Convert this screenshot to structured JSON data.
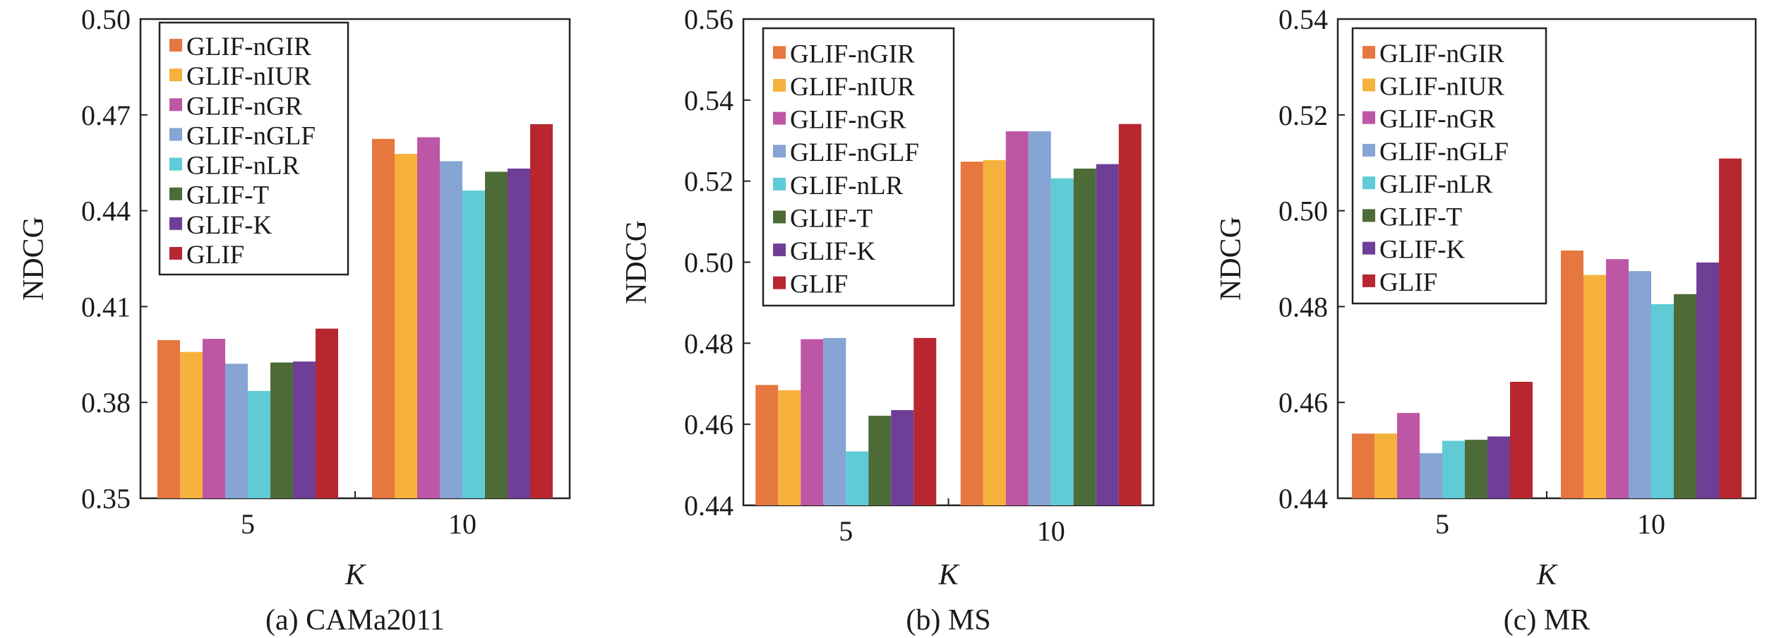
{
  "colors": {
    "GLIF-nGIR": "#E6773F",
    "GLIF-nIUR": "#F5B13B",
    "GLIF-nGR": "#BE56A6",
    "GLIF-nGLF": "#86A4D4",
    "GLIF-nLR": "#5FCBD6",
    "GLIF-T": "#4D6B36",
    "GLIF-K": "#6F3E97",
    "GLIF": "#B8262F"
  },
  "chart_data": [
    {
      "type": "bar",
      "caption": "(a) CAMa2011",
      "xlabel": "K",
      "ylabel": "NDCG",
      "categories": [
        "5",
        "10"
      ],
      "ylim": [
        0.35,
        0.5
      ],
      "yticks": [
        "0.35",
        "0.38",
        "0.41",
        "0.44",
        "0.47",
        "0.50"
      ],
      "legend_position": "top-left",
      "series": [
        {
          "name": "GLIF-nGIR",
          "values": [
            0.3995,
            0.4625
          ]
        },
        {
          "name": "GLIF-nIUR",
          "values": [
            0.3958,
            0.4578
          ]
        },
        {
          "name": "GLIF-nGR",
          "values": [
            0.3999,
            0.463
          ]
        },
        {
          "name": "GLIF-nGLF",
          "values": [
            0.3921,
            0.4555
          ]
        },
        {
          "name": "GLIF-nLR",
          "values": [
            0.3836,
            0.4463
          ]
        },
        {
          "name": "GLIF-T",
          "values": [
            0.3925,
            0.4522
          ]
        },
        {
          "name": "GLIF-K",
          "values": [
            0.3928,
            0.4532
          ]
        },
        {
          "name": "GLIF",
          "values": [
            0.4031,
            0.4671
          ]
        }
      ]
    },
    {
      "type": "bar",
      "caption": "(b) MS",
      "xlabel": "K",
      "ylabel": "NDCG",
      "categories": [
        "5",
        "10"
      ],
      "ylim": [
        0.44,
        0.56
      ],
      "yticks": [
        "0.44",
        "0.46",
        "0.48",
        "0.50",
        "0.52",
        "0.54",
        "0.56"
      ],
      "legend_position": "top-left",
      "series": [
        {
          "name": "GLIF-nGIR",
          "values": [
            0.4697,
            0.5248
          ]
        },
        {
          "name": "GLIF-nIUR",
          "values": [
            0.4684,
            0.5252
          ]
        },
        {
          "name": "GLIF-nGR",
          "values": [
            0.481,
            0.5323
          ]
        },
        {
          "name": "GLIF-nGLF",
          "values": [
            0.4813,
            0.5323
          ]
        },
        {
          "name": "GLIF-nLR",
          "values": [
            0.4533,
            0.5207
          ]
        },
        {
          "name": "GLIF-T",
          "values": [
            0.4621,
            0.5231
          ]
        },
        {
          "name": "GLIF-K",
          "values": [
            0.4635,
            0.5242
          ]
        },
        {
          "name": "GLIF",
          "values": [
            0.4813,
            0.5341
          ]
        }
      ]
    },
    {
      "type": "bar",
      "caption": "(c) MR",
      "xlabel": "K",
      "ylabel": "NDCG",
      "categories": [
        "5",
        "10"
      ],
      "ylim": [
        0.44,
        0.54
      ],
      "yticks": [
        "0.44",
        "0.46",
        "0.48",
        "0.50",
        "0.52",
        "0.54"
      ],
      "legend_position": "top-left",
      "series": [
        {
          "name": "GLIF-nGIR",
          "values": [
            0.4535,
            0.4917
          ]
        },
        {
          "name": "GLIF-nIUR",
          "values": [
            0.4535,
            0.4866
          ]
        },
        {
          "name": "GLIF-nGR",
          "values": [
            0.4578,
            0.4899
          ]
        },
        {
          "name": "GLIF-nGLF",
          "values": [
            0.4494,
            0.4874
          ]
        },
        {
          "name": "GLIF-nLR",
          "values": [
            0.452,
            0.4805
          ]
        },
        {
          "name": "GLIF-T",
          "values": [
            0.4522,
            0.4826
          ]
        },
        {
          "name": "GLIF-K",
          "values": [
            0.4529,
            0.4892
          ]
        },
        {
          "name": "GLIF",
          "values": [
            0.4643,
            0.5109
          ]
        }
      ]
    }
  ]
}
